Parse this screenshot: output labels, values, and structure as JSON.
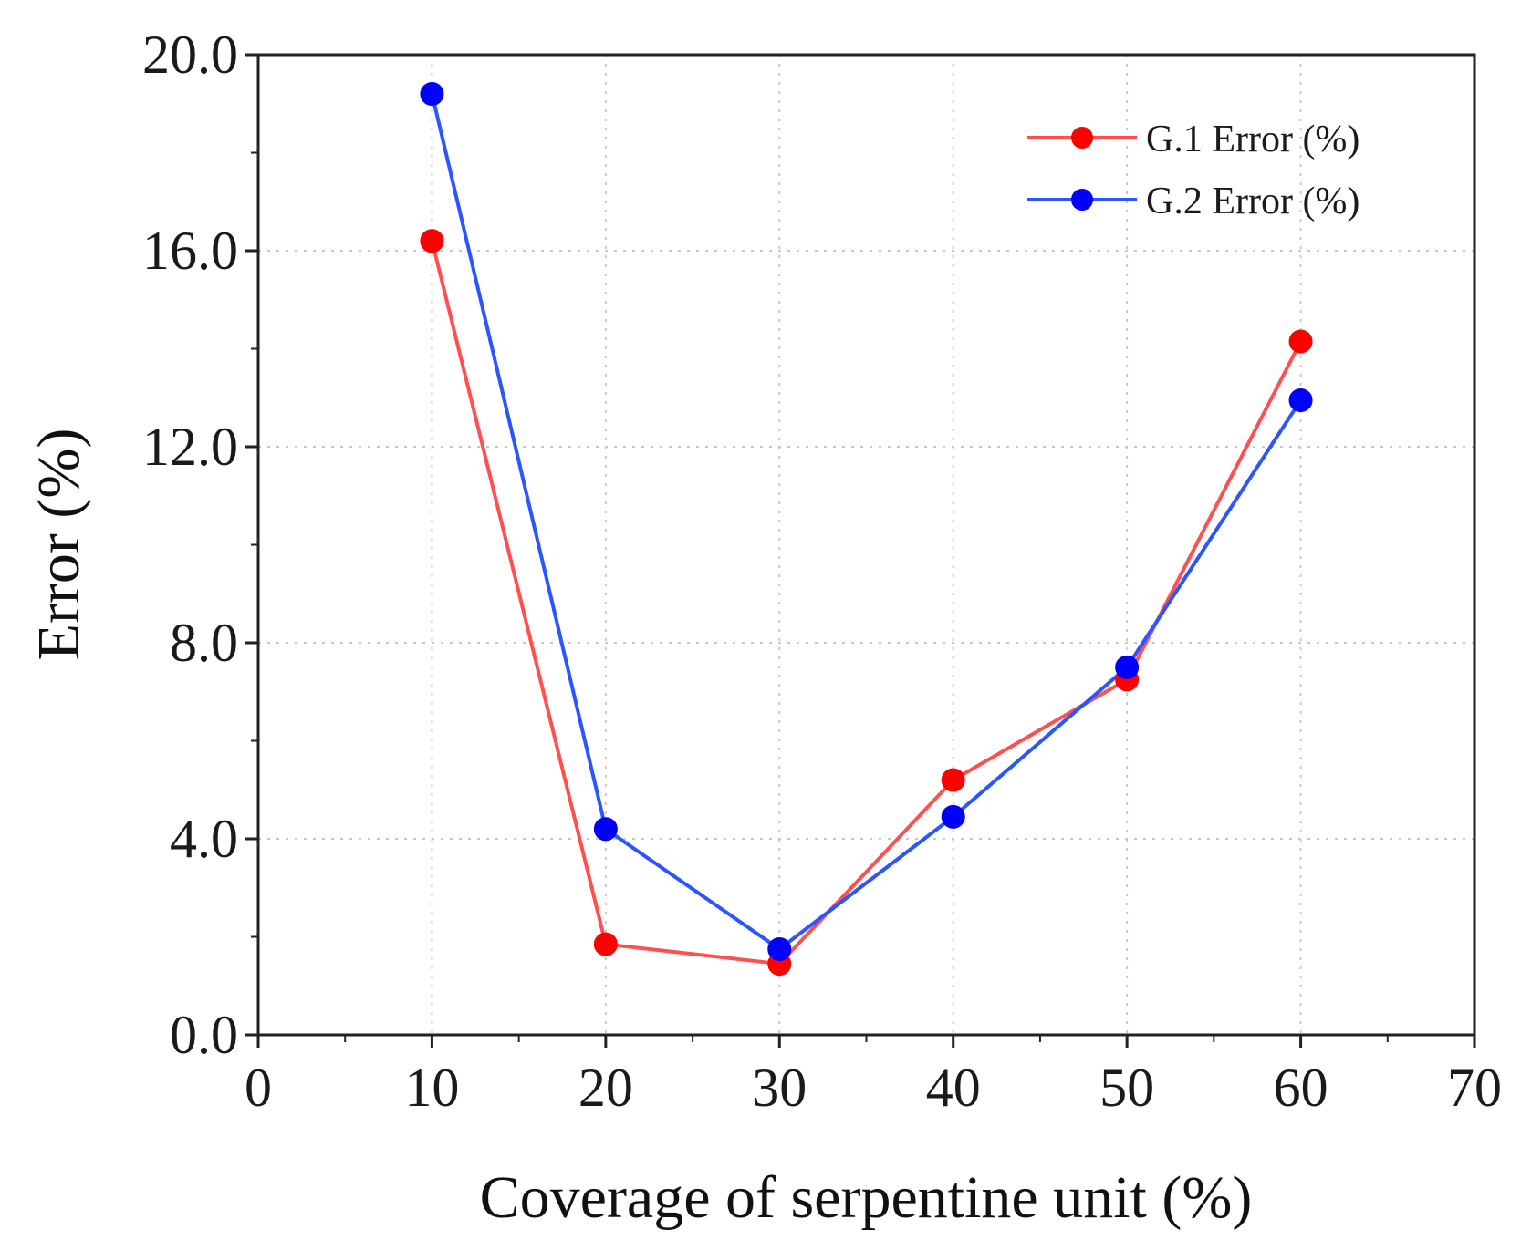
{
  "chart_data": {
    "type": "line",
    "title": "",
    "xlabel": "Coverage of serpentine unit (%)",
    "ylabel": "Error (%)",
    "xlim": [
      0,
      70
    ],
    "ylim": [
      0,
      20
    ],
    "x_ticks": [
      0,
      10,
      20,
      30,
      40,
      50,
      60,
      70
    ],
    "x_tick_labels": [
      "0",
      "10",
      "20",
      "30",
      "40",
      "50",
      "60",
      "70"
    ],
    "y_ticks": [
      0,
      4,
      8,
      12,
      16,
      20
    ],
    "y_tick_labels": [
      "0.0",
      "4.0",
      "8.0",
      "12.0",
      "16.0",
      "20.0"
    ],
    "grid": true,
    "legend_position": "top-right",
    "x": [
      10,
      20,
      30,
      40,
      50,
      60
    ],
    "series": [
      {
        "name": "G.1 Error (%)",
        "color": "#ff0000",
        "line_color": "#ff5050",
        "values": [
          16.2,
          1.85,
          1.45,
          5.2,
          7.25,
          14.15
        ]
      },
      {
        "name": "G.2 Error (%)",
        "color": "#0000ff",
        "line_color": "#2a55ff",
        "values": [
          19.2,
          4.2,
          1.75,
          4.45,
          7.5,
          12.95
        ]
      }
    ]
  }
}
